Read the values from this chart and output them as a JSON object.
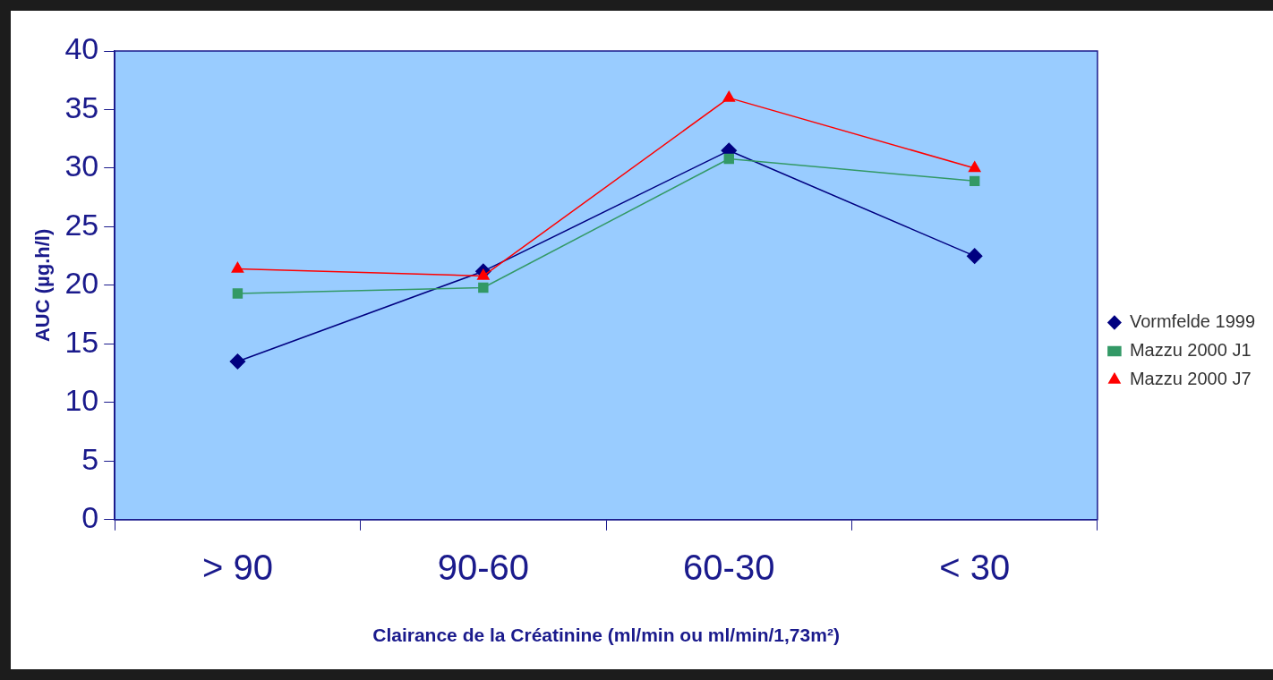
{
  "chart_data": {
    "type": "line",
    "xlabel": "Clairance de la Créatinine (ml/min ou ml/min/1,73m²)",
    "ylabel": "AUC (µg.h/l)",
    "categories": [
      "> 90",
      "90-60",
      "60-30",
      "< 30"
    ],
    "series": [
      {
        "name": "Vormfelde 1999",
        "color": "#000080",
        "marker": "diamond",
        "values": [
          13.5,
          21.2,
          31.5,
          22.5
        ]
      },
      {
        "name": "Mazzu 2000 J1",
        "color": "#339966",
        "marker": "square",
        "values": [
          19.3,
          19.8,
          30.8,
          28.9
        ]
      },
      {
        "name": "Mazzu 2000 J7",
        "color": "#ff0000",
        "marker": "triangle",
        "values": [
          21.4,
          20.8,
          36,
          30
        ]
      }
    ],
    "ylim": [
      0,
      40
    ],
    "yticks": [
      0,
      5,
      10,
      15,
      20,
      25,
      30,
      35,
      40
    ],
    "grid": false,
    "legend": "right",
    "line_style": "solid"
  }
}
